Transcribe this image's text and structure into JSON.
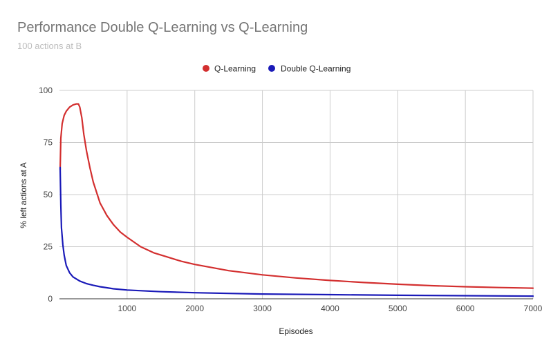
{
  "chart_data": {
    "type": "line",
    "title": "Performance Double Q-Learning vs Q-Learning",
    "subtitle": "100 actions at B",
    "xlabel": "Episodes",
    "ylabel": "% left actions at A",
    "xlim": [
      0,
      7000
    ],
    "ylim": [
      0,
      100
    ],
    "x_ticks": [
      1000,
      2000,
      3000,
      4000,
      5000,
      6000,
      7000
    ],
    "y_ticks": [
      0,
      25,
      50,
      75,
      100
    ],
    "grid": true,
    "legend_position": "top",
    "series": [
      {
        "name": "Q-Learning",
        "color": "#d32f2f",
        "points": [
          [
            10,
            62
          ],
          [
            20,
            77
          ],
          [
            40,
            84
          ],
          [
            70,
            88
          ],
          [
            100,
            90
          ],
          [
            150,
            92
          ],
          [
            200,
            93
          ],
          [
            250,
            93.5
          ],
          [
            280,
            93.5
          ],
          [
            300,
            92
          ],
          [
            330,
            87
          ],
          [
            360,
            79
          ],
          [
            400,
            71
          ],
          [
            450,
            63
          ],
          [
            500,
            56
          ],
          [
            600,
            46
          ],
          [
            700,
            40
          ],
          [
            800,
            35.5
          ],
          [
            900,
            32
          ],
          [
            1000,
            29.5
          ],
          [
            1200,
            25
          ],
          [
            1400,
            22
          ],
          [
            1600,
            20
          ],
          [
            1800,
            18
          ],
          [
            2000,
            16.5
          ],
          [
            2500,
            13.5
          ],
          [
            3000,
            11.5
          ],
          [
            3500,
            10
          ],
          [
            4000,
            8.8
          ],
          [
            4500,
            7.8
          ],
          [
            5000,
            7
          ],
          [
            5500,
            6.3
          ],
          [
            6000,
            5.8
          ],
          [
            6500,
            5.4
          ],
          [
            7000,
            5.1
          ]
        ]
      },
      {
        "name": "Double Q-Learning",
        "color": "#1a1ab8",
        "points": [
          [
            10,
            63
          ],
          [
            20,
            45
          ],
          [
            30,
            34
          ],
          [
            50,
            26
          ],
          [
            70,
            21
          ],
          [
            100,
            16
          ],
          [
            150,
            12.5
          ],
          [
            200,
            10.5
          ],
          [
            300,
            8.5
          ],
          [
            400,
            7.3
          ],
          [
            500,
            6.5
          ],
          [
            600,
            5.8
          ],
          [
            800,
            4.8
          ],
          [
            1000,
            4.2
          ],
          [
            1500,
            3.4
          ],
          [
            2000,
            2.9
          ],
          [
            3000,
            2.3
          ],
          [
            4000,
            2
          ],
          [
            5000,
            1.7
          ],
          [
            6000,
            1.5
          ],
          [
            7000,
            1.3
          ]
        ]
      }
    ]
  }
}
